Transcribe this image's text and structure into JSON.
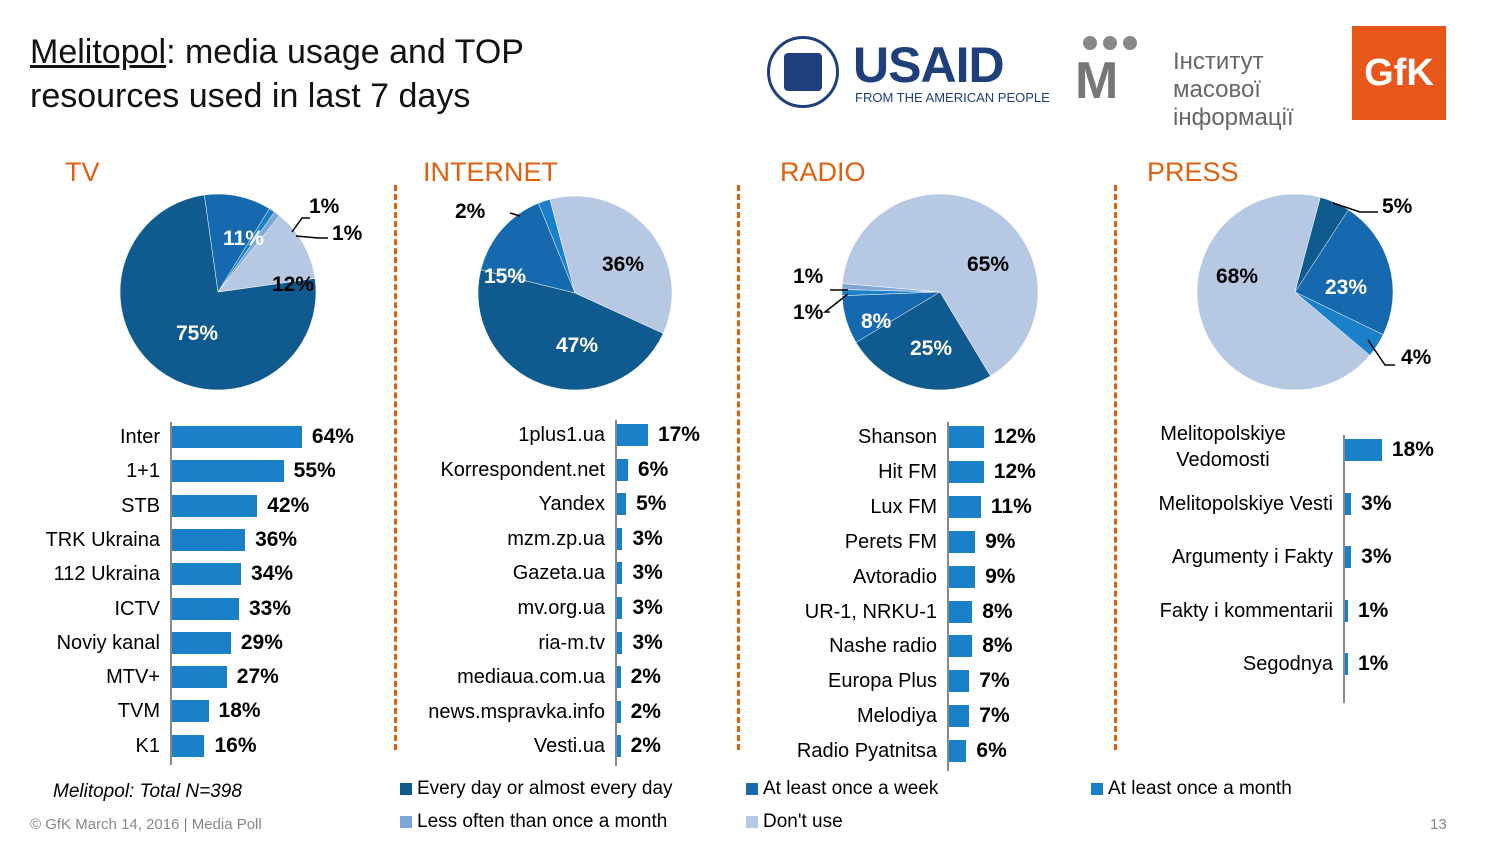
{
  "title": {
    "city": "Melitopol",
    "rest1": ": media usage and TOP",
    "line2": "resources used in last 7 days"
  },
  "logos": {
    "usaid": "USAID",
    "usaid_sub": "FROM THE AMERICAN PEOPLE",
    "imi_line1": "Інститут масової",
    "imi_line2": "інформації",
    "gfk": "GfK"
  },
  "colors": {
    "every_day": "#0F5A8E",
    "weekly": "#1669AE",
    "monthly": "#1A80C8",
    "less_often": "#7EA6D6",
    "dont_use": "#B7C8E2"
  },
  "chart_data": [
    {
      "type": "pie",
      "title": "TV",
      "slices": [
        {
          "name": "At least once a week",
          "value": 11
        },
        {
          "name": "At least once a month",
          "value": 1
        },
        {
          "name": "Less often than once a month",
          "value": 1
        },
        {
          "name": "Don't use",
          "value": 12
        },
        {
          "name": "Every day or almost every day",
          "value": 75
        }
      ],
      "labels": [
        "11%",
        "1%",
        "1%",
        "12%",
        "75%"
      ],
      "bars": {
        "categories": [
          "Inter",
          "1+1",
          "STB",
          "TRK Ukraina",
          "112 Ukraina",
          "ICTV",
          "Noviy kanal",
          "MTV+",
          "TVM",
          "K1"
        ],
        "values": [
          64,
          55,
          42,
          36,
          34,
          33,
          29,
          27,
          18,
          16
        ],
        "labels": [
          "64%",
          "55%",
          "42%",
          "36%",
          "34%",
          "33%",
          "29%",
          "27%",
          "18%",
          "16%"
        ]
      }
    },
    {
      "type": "pie",
      "title": "INTERNET",
      "slices": [
        {
          "name": "Don't use",
          "value": 36
        },
        {
          "name": "Every day or almost every day",
          "value": 47
        },
        {
          "name": "At least once a week",
          "value": 15
        },
        {
          "name": "At least once a month",
          "value": 2
        }
      ],
      "labels": [
        "36%",
        "47%",
        "15%",
        "2%"
      ],
      "bars": {
        "categories": [
          "1plus1.ua",
          "Korrespondent.net",
          "Yandex",
          "mzm.zp.ua",
          "Gazeta.ua",
          "mv.org.ua",
          "ria-m.tv",
          "mediaua.com.ua",
          "news.mspravka.info",
          "Vesti.ua"
        ],
        "values": [
          17,
          6,
          5,
          3,
          3,
          3,
          3,
          2,
          2,
          2
        ],
        "labels": [
          "17%",
          "6%",
          "5%",
          "3%",
          "3%",
          "3%",
          "3%",
          "2%",
          "2%",
          "2%"
        ]
      }
    },
    {
      "type": "pie",
      "title": "RADIO",
      "slices": [
        {
          "name": "Don't use",
          "value": 65
        },
        {
          "name": "Every day or almost every day",
          "value": 25
        },
        {
          "name": "At least once a week",
          "value": 8
        },
        {
          "name": "At least once a month",
          "value": 1
        },
        {
          "name": "Less often than once a month",
          "value": 1
        }
      ],
      "labels": [
        "65%",
        "25%",
        "8%",
        "1%",
        "1%"
      ],
      "bars": {
        "categories": [
          "Shanson",
          "Hit FM",
          "Lux FM",
          "Perets FM",
          "Avtoradio",
          "UR-1, NRKU-1",
          "Nashe radio",
          "Europa Plus",
          "Melodiya",
          "Radio Pyatnitsa"
        ],
        "values": [
          12,
          12,
          11,
          9,
          9,
          8,
          8,
          7,
          7,
          6
        ],
        "labels": [
          "12%",
          "12%",
          "11%",
          "9%",
          "9%",
          "8%",
          "8%",
          "7%",
          "7%",
          "6%"
        ]
      }
    },
    {
      "type": "pie",
      "title": "PRESS",
      "slices": [
        {
          "name": "Every day or almost every day",
          "value": 5
        },
        {
          "name": "At least once a week",
          "value": 23
        },
        {
          "name": "At least once a month",
          "value": 4
        },
        {
          "name": "Don't use",
          "value": 68
        }
      ],
      "labels": [
        "5%",
        "23%",
        "4%",
        "68%"
      ],
      "bars": {
        "categories": [
          "Melitopolskiye Vedomosti",
          "Melitopolskiye Vesti",
          "Argumenty i Fakty",
          "Fakty i kommentarii",
          "Segodnya"
        ],
        "values": [
          18,
          3,
          3,
          1,
          1
        ],
        "labels": [
          "18%",
          "3%",
          "3%",
          "1%",
          "1%"
        ]
      }
    }
  ],
  "legend": [
    "Every day or almost every day",
    "At least once a week",
    "At least once a month",
    "Less often than once a month",
    "Don't use"
  ],
  "footnote": "Melitopol: Total N=398",
  "footer": "© GfK March 14, 2016 | Media Poll",
  "page_number": "13"
}
